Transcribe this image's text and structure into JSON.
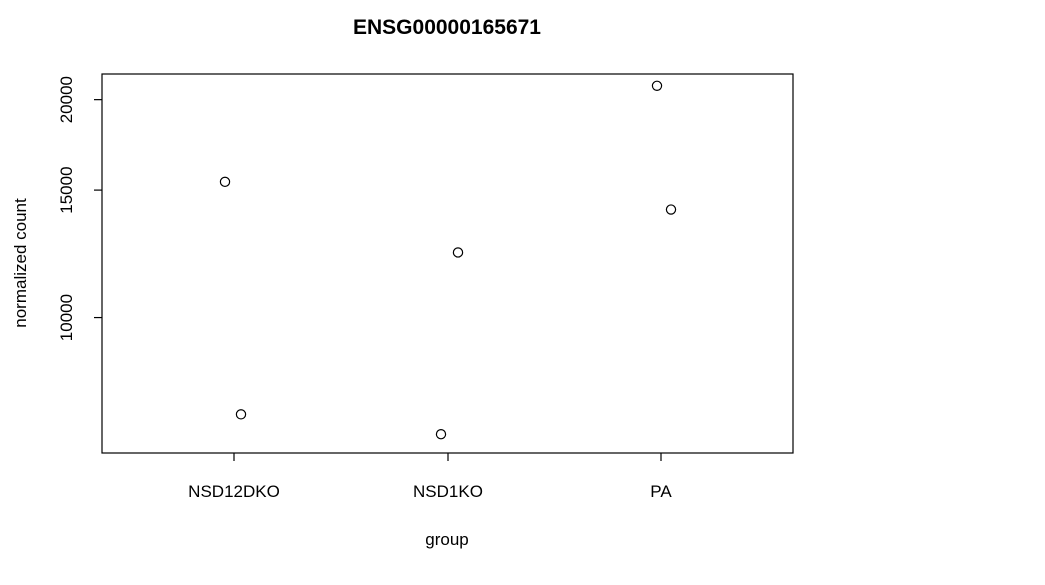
{
  "chart_data": {
    "type": "scatter",
    "title": "ENSG00000165671",
    "xlabel": "group",
    "ylabel": "normalized count",
    "y_scale": "log",
    "categories": [
      "NSD12DKO",
      "NSD1KO",
      "PA"
    ],
    "y_ticks": [
      "10000",
      "15000",
      "20000"
    ],
    "ylim": [
      6500,
      21700
    ],
    "points": [
      {
        "category": "NSD12DKO",
        "y": 15400
      },
      {
        "category": "NSD12DKO",
        "y": 7350
      },
      {
        "category": "NSD1KO",
        "y": 12300
      },
      {
        "category": "NSD1KO",
        "y": 6900
      },
      {
        "category": "PA",
        "y": 20900
      },
      {
        "category": "PA",
        "y": 14100
      }
    ],
    "grid": false,
    "legend": "none"
  }
}
